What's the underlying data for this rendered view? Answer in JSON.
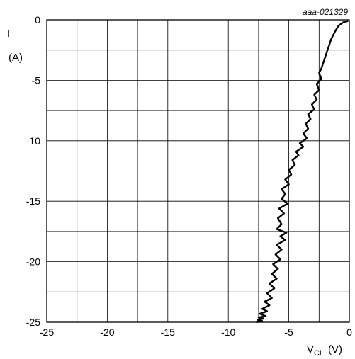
{
  "figure_id": "aaa-021329",
  "chart_data": {
    "type": "line",
    "xlabel": {
      "main": "V",
      "sub": "CL",
      "unit": "(V)"
    },
    "ylabel": {
      "main": "I",
      "unit": "(A)"
    },
    "xlim": [
      -25,
      0
    ],
    "ylim": [
      -25,
      0
    ],
    "x_tick_labels": [
      "-25",
      "-20",
      "-15",
      "-10",
      "-5",
      "0"
    ],
    "y_tick_labels": [
      "0",
      "-5",
      "-10",
      "-15",
      "-20",
      "-25"
    ],
    "grid": true,
    "series": [
      {
        "x": [
          -0.1,
          -0.5,
          -0.9,
          -1.2,
          -1.5,
          -1.7,
          -1.9,
          -2.1,
          -2.3,
          -2.5,
          -2.3,
          -2.7,
          -2.5,
          -2.9,
          -2.7,
          -3.1,
          -2.9,
          -3.4,
          -3.2,
          -3.6,
          -3.4,
          -3.8,
          -3.5,
          -4.1,
          -3.8,
          -4.4,
          -4.2,
          -4.7,
          -4.5,
          -5.0,
          -4.8,
          -5.3,
          -5.0,
          -5.6,
          -5.3,
          -5.6,
          -5.1,
          -5.8,
          -5.4,
          -5.9,
          -5.6,
          -6.0,
          -5.2,
          -5.7,
          -5.3,
          -6.0,
          -5.6,
          -6.1,
          -5.7,
          -6.3,
          -5.9,
          -6.4,
          -6.0,
          -6.6,
          -6.2,
          -6.8,
          -6.4,
          -7.0,
          -6.6,
          -7.2,
          -6.8,
          -7.4,
          -6.9,
          -7.5,
          -7.1,
          -7.6,
          -7.2,
          -7.7
        ],
        "y": [
          -0.1,
          -0.2,
          -0.5,
          -1.0,
          -1.6,
          -2.2,
          -2.8,
          -3.4,
          -4.0,
          -4.4,
          -4.9,
          -5.3,
          -5.8,
          -6.2,
          -6.6,
          -7.0,
          -7.4,
          -7.8,
          -8.2,
          -8.6,
          -9.0,
          -9.4,
          -9.8,
          -10.2,
          -10.5,
          -10.9,
          -11.2,
          -11.6,
          -12.0,
          -12.4,
          -12.8,
          -13.2,
          -13.6,
          -14.0,
          -14.4,
          -14.8,
          -15.2,
          -15.6,
          -16.0,
          -16.4,
          -16.9,
          -17.3,
          -17.6,
          -17.9,
          -18.2,
          -18.6,
          -19.0,
          -19.4,
          -19.8,
          -20.2,
          -20.6,
          -21.0,
          -21.4,
          -21.8,
          -22.2,
          -22.6,
          -23.0,
          -23.3,
          -23.6,
          -23.9,
          -24.1,
          -24.3,
          -24.5,
          -24.6,
          -24.7,
          -24.8,
          -24.9,
          -25.0
        ]
      }
    ]
  }
}
